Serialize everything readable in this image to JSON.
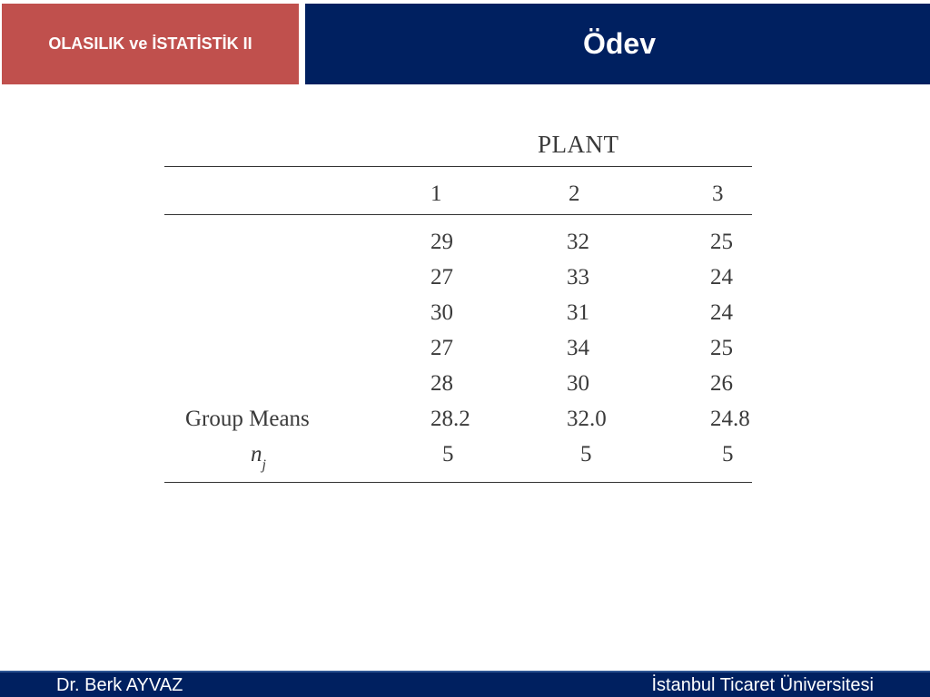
{
  "header": {
    "course": "OLASILIK ve İSTATİSTİK II",
    "title": "Ödev"
  },
  "table": {
    "group_title": "PLANT",
    "columns": [
      "1",
      "2",
      "3"
    ],
    "rows": [
      [
        "29",
        "32",
        "25"
      ],
      [
        "27",
        "33",
        "24"
      ],
      [
        "30",
        "31",
        "24"
      ],
      [
        "27",
        "34",
        "25"
      ],
      [
        "28",
        "30",
        "26"
      ]
    ],
    "means_label": "Group Means",
    "means": [
      "28.2",
      "32.0",
      "24.8"
    ],
    "n_label_base": "n",
    "n_label_sub": "j",
    "n_values": [
      "5",
      "5",
      "5"
    ]
  },
  "footer": {
    "author": "Dr. Berk AYVAZ",
    "institution": "İstanbul Ticaret Üniversitesi"
  }
}
